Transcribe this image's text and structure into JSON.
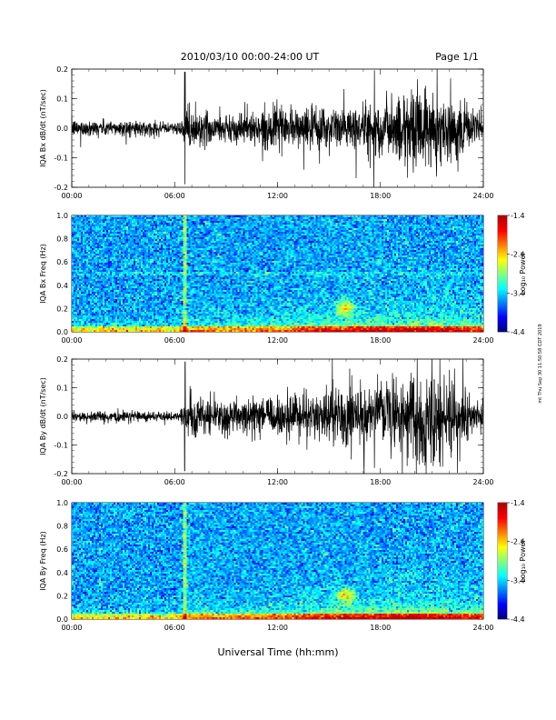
{
  "header": {
    "title": "2010/03/10  00:00-24:00 UT",
    "page": "Page 1/1"
  },
  "side_note": "mt Thu Sep 30 11:50:58 CDT 2019",
  "xlabel": "Universal Time (hh:mm)",
  "x_ticks": [
    "00:00",
    "06:00",
    "12:00",
    "18:00",
    "24:00"
  ],
  "colorbar": {
    "label": "Log₁₀ Power",
    "ticks": [
      "-1.4",
      "-2.4",
      "-3.4",
      "-4.4"
    ],
    "range": [
      -4.4,
      -1.4
    ]
  },
  "chart_data": [
    {
      "type": "line",
      "ylabel": "IQA Bx dB/dt (nT/sec)",
      "xlim": [
        0,
        24
      ],
      "ylim": [
        -0.2,
        0.2
      ],
      "y_ticks": [
        "0.2",
        "0.1",
        "0.0",
        "-0.1",
        "-0.2"
      ],
      "envelope_hours": [
        0,
        3,
        6,
        6.6,
        9,
        12,
        15,
        18,
        20,
        22,
        24
      ],
      "envelope_amplitude": [
        0.03,
        0.03,
        0.02,
        0.08,
        0.05,
        0.07,
        0.08,
        0.1,
        0.15,
        0.12,
        0.05
      ]
    },
    {
      "type": "heatmap",
      "ylabel": "IQA Bx Freq (Hz)",
      "xlim": [
        0,
        24
      ],
      "ylim": [
        0.0,
        1.0
      ],
      "y_ticks": [
        "1.0",
        "0.8",
        "0.6",
        "0.4",
        "0.2",
        "0.0"
      ],
      "features": {
        "burst_hour": 6.6,
        "hotspot_hour": 16.0,
        "hotspot_freq": 0.2,
        "line_freq": 0.5
      }
    },
    {
      "type": "line",
      "ylabel": "IQA By dB/dt (nT/sec)",
      "xlim": [
        0,
        24
      ],
      "ylim": [
        -0.2,
        0.2
      ],
      "y_ticks": [
        "0.2",
        "0.1",
        "0.0",
        "-0.1",
        "-0.2"
      ],
      "envelope_hours": [
        0,
        3,
        6,
        6.6,
        9,
        12,
        15,
        18,
        20,
        22,
        24
      ],
      "envelope_amplitude": [
        0.02,
        0.02,
        0.02,
        0.09,
        0.06,
        0.08,
        0.1,
        0.12,
        0.18,
        0.14,
        0.05
      ]
    },
    {
      "type": "heatmap",
      "ylabel": "IQA By Freq (Hz)",
      "xlim": [
        0,
        24
      ],
      "ylim": [
        0.0,
        1.0
      ],
      "y_ticks": [
        "1.0",
        "0.8",
        "0.6",
        "0.4",
        "0.2",
        "0.0"
      ],
      "features": {
        "burst_hour": 6.6,
        "hotspot_hour": 16.0,
        "hotspot_freq": 0.2,
        "line_freq": null
      }
    }
  ]
}
